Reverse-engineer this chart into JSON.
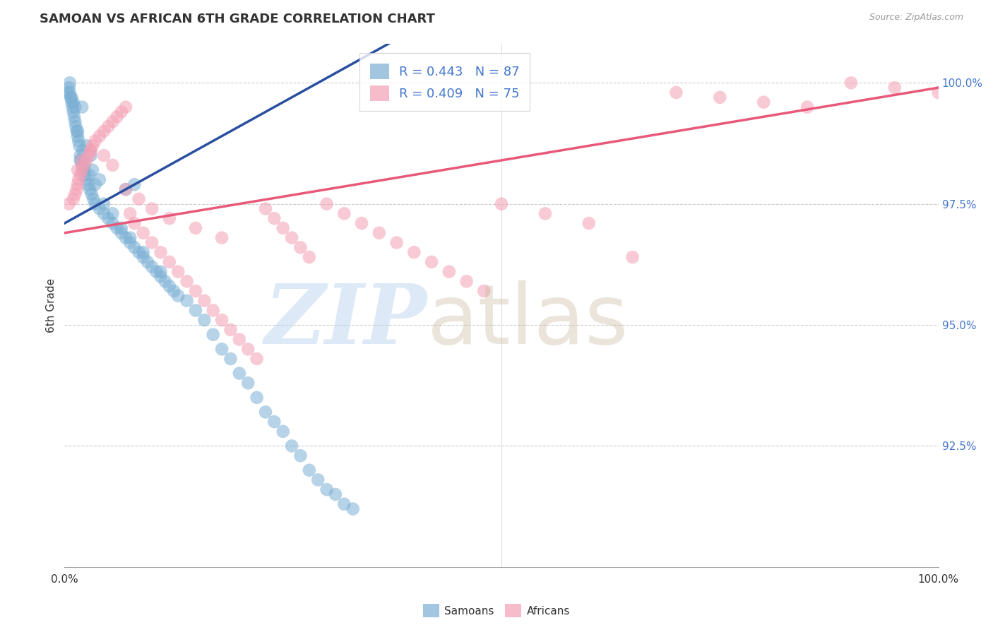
{
  "title": "SAMOAN VS AFRICAN 6TH GRADE CORRELATION CHART",
  "source": "Source: ZipAtlas.com",
  "ylabel": "6th Grade",
  "samoan_R": 0.443,
  "samoan_N": 87,
  "african_R": 0.409,
  "african_N": 75,
  "samoan_color": "#7bafd4",
  "african_color": "#f4a0b5",
  "samoan_line_color": "#2a4fa0",
  "african_line_color": "#e85878",
  "xlim": [
    0,
    100
  ],
  "ylim": [
    90.0,
    100.8
  ],
  "yticks": [
    100.0,
    97.5,
    95.0,
    92.5
  ],
  "ytick_labels": [
    "100.0%",
    "97.5%",
    "95.0%",
    "92.5%"
  ],
  "grid_color": "#cccccc",
  "text_color": "#333333",
  "right_tick_color": "#4477cc",
  "source_color": "#999999",
  "legend_fontsize": 13,
  "axis_fontsize": 11,
  "title_fontsize": 13,
  "samoan_slope": 0.1,
  "samoan_intercept": 97.1,
  "african_slope": 0.03,
  "african_intercept": 96.9,
  "samoan_x": [
    0.3,
    0.5,
    0.6,
    0.7,
    0.8,
    0.9,
    1.0,
    1.1,
    1.2,
    1.3,
    1.4,
    1.5,
    1.6,
    1.7,
    1.8,
    1.9,
    2.0,
    2.2,
    2.3,
    2.5,
    2.7,
    2.9,
    3.1,
    3.3,
    3.5,
    4.0,
    4.5,
    5.0,
    5.5,
    6.0,
    6.5,
    7.0,
    7.5,
    8.0,
    8.5,
    9.0,
    9.5,
    10.0,
    10.5,
    11.0,
    11.5,
    12.0,
    12.5,
    13.0,
    14.0,
    15.0,
    16.0,
    17.0,
    18.0,
    19.0,
    20.0,
    21.0,
    22.0,
    23.0,
    24.0,
    25.0,
    26.0,
    27.0,
    28.0,
    29.0,
    30.0,
    31.0,
    32.0,
    33.0,
    7.0,
    8.0,
    2.0,
    3.0,
    1.5,
    2.5,
    4.0,
    1.0,
    0.8,
    0.6,
    1.2,
    2.1,
    3.5,
    1.8,
    2.8,
    4.5,
    5.5,
    6.5,
    7.5,
    9.0,
    11.0,
    3.2,
    2.3
  ],
  "samoan_y": [
    99.8,
    99.9,
    100.0,
    99.7,
    99.6,
    99.5,
    99.4,
    99.3,
    99.2,
    99.1,
    99.0,
    98.9,
    98.8,
    98.7,
    98.5,
    98.4,
    98.3,
    98.2,
    98.1,
    98.0,
    97.9,
    97.8,
    97.7,
    97.6,
    97.5,
    97.4,
    97.3,
    97.2,
    97.1,
    97.0,
    96.9,
    96.8,
    96.7,
    96.6,
    96.5,
    96.4,
    96.3,
    96.2,
    96.1,
    96.0,
    95.9,
    95.8,
    95.7,
    95.6,
    95.5,
    95.3,
    95.1,
    94.8,
    94.5,
    94.3,
    94.0,
    93.8,
    93.5,
    93.2,
    93.0,
    92.8,
    92.5,
    92.3,
    92.0,
    91.8,
    91.6,
    91.5,
    91.3,
    91.2,
    97.8,
    97.9,
    99.5,
    98.5,
    99.0,
    98.7,
    98.0,
    99.6,
    99.7,
    99.8,
    99.5,
    98.6,
    97.9,
    98.4,
    98.1,
    97.5,
    97.3,
    97.0,
    96.8,
    96.5,
    96.1,
    98.2,
    98.3
  ],
  "african_x": [
    0.5,
    1.0,
    1.2,
    1.4,
    1.5,
    1.6,
    1.8,
    2.0,
    2.2,
    2.5,
    2.8,
    3.0,
    3.2,
    3.5,
    4.0,
    4.5,
    5.0,
    5.5,
    6.0,
    6.5,
    7.0,
    7.5,
    8.0,
    9.0,
    10.0,
    11.0,
    12.0,
    13.0,
    14.0,
    15.0,
    16.0,
    17.0,
    18.0,
    19.0,
    20.0,
    21.0,
    22.0,
    23.0,
    24.0,
    25.0,
    26.0,
    27.0,
    28.0,
    30.0,
    32.0,
    34.0,
    36.0,
    38.0,
    40.0,
    42.0,
    44.0,
    46.0,
    48.0,
    50.0,
    55.0,
    60.0,
    65.0,
    70.0,
    75.0,
    80.0,
    85.0,
    90.0,
    95.0,
    100.0,
    1.5,
    2.0,
    3.0,
    4.5,
    5.5,
    7.0,
    8.5,
    10.0,
    12.0,
    15.0,
    18.0
  ],
  "african_y": [
    97.5,
    97.6,
    97.7,
    97.8,
    97.9,
    98.0,
    98.1,
    98.2,
    98.3,
    98.4,
    98.5,
    98.6,
    98.7,
    98.8,
    98.9,
    99.0,
    99.1,
    99.2,
    99.3,
    99.4,
    99.5,
    97.3,
    97.1,
    96.9,
    96.7,
    96.5,
    96.3,
    96.1,
    95.9,
    95.7,
    95.5,
    95.3,
    95.1,
    94.9,
    94.7,
    94.5,
    94.3,
    97.4,
    97.2,
    97.0,
    96.8,
    96.6,
    96.4,
    97.5,
    97.3,
    97.1,
    96.9,
    96.7,
    96.5,
    96.3,
    96.1,
    95.9,
    95.7,
    97.5,
    97.3,
    97.1,
    96.4,
    99.8,
    99.7,
    99.6,
    99.5,
    100.0,
    99.9,
    99.8,
    98.2,
    98.4,
    98.6,
    98.5,
    98.3,
    97.8,
    97.6,
    97.4,
    97.2,
    97.0,
    96.8
  ]
}
